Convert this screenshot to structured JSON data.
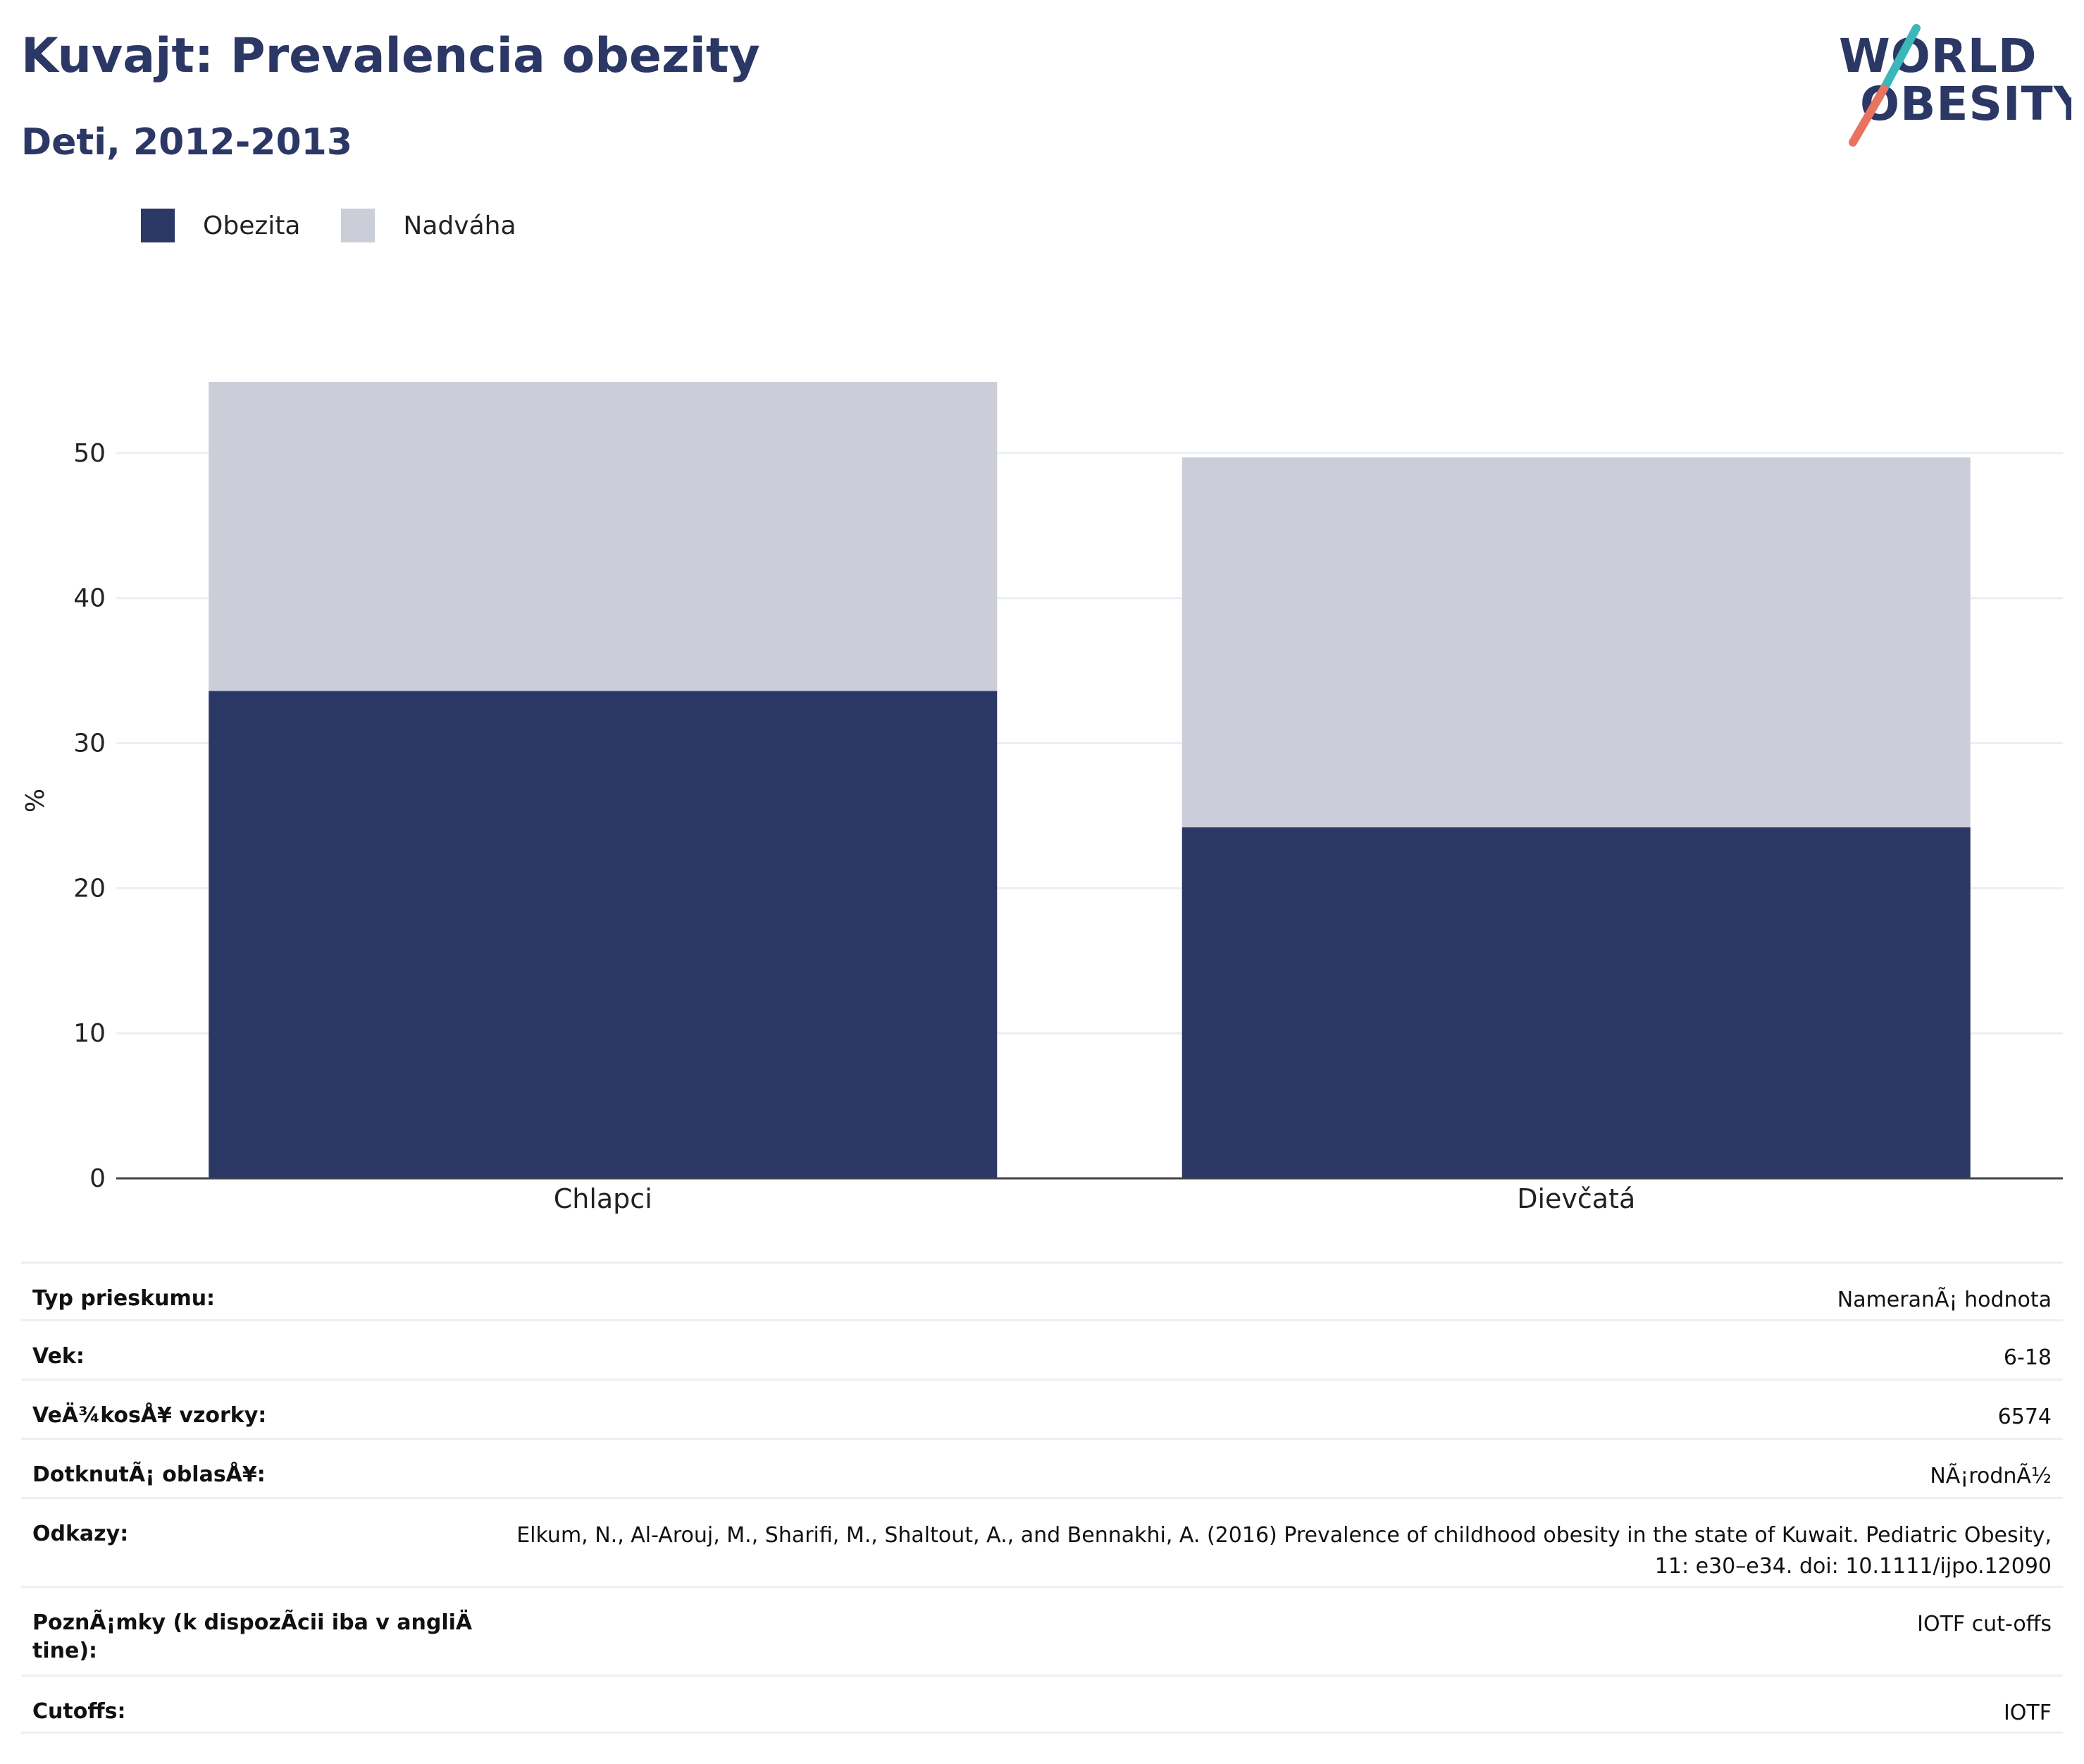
{
  "header": {
    "title": "Kuvajt: Prevalencia obezity",
    "subtitle": "Deti, 2012-2013"
  },
  "logo": {
    "line1": "WORLD",
    "line2": "OBESITY",
    "accent_teal": "#3bb6b9",
    "accent_coral": "#e8735f"
  },
  "colors": {
    "obesity": "#2b3764",
    "overweight": "#cbcdd8",
    "title": "#2b3764"
  },
  "chart_data": {
    "type": "bar",
    "stacked": true,
    "categories": [
      "Chlapci",
      "Dievčatá"
    ],
    "series": [
      {
        "name": "Obezita",
        "values": [
          33.6,
          24.2
        ],
        "color": "#2b3764"
      },
      {
        "name": "Nadváha",
        "values": [
          21.3,
          25.5
        ],
        "color": "#cbcdd8"
      }
    ],
    "ylabel": "%",
    "xlabel": "",
    "ylim": [
      0,
      55
    ],
    "yticks": [
      0,
      10,
      20,
      30,
      40,
      50
    ],
    "grid": true,
    "legend_position": "top-left"
  },
  "info_table": [
    {
      "label": "Typ prieskumu:",
      "value": "NameranÃ¡ hodnota"
    },
    {
      "label": "Vek:",
      "value": "6-18"
    },
    {
      "label": "VeÄ¾kosÅ¥ vzorky:",
      "value": "6574"
    },
    {
      "label": "DotknutÃ¡ oblasÅ¥:",
      "value": "NÃ¡rodnÃ½"
    },
    {
      "label": "Odkazy:",
      "value": "Elkum, N., Al-Arouj, M., Sharifi, M., Shaltout, A., and Bennakhi, A. (2016) Prevalence of childhood obesity in the state of Kuwait. Pediatric Obesity, 11: e30–e34. doi: 10.1111/ijpo.12090"
    },
    {
      "label": "PoznÃ¡mky (k dispozÃcii iba v angliÄ tine):",
      "value": "IOTF cut-offs"
    },
    {
      "label": "Cutoffs:",
      "value": "IOTF"
    }
  ]
}
